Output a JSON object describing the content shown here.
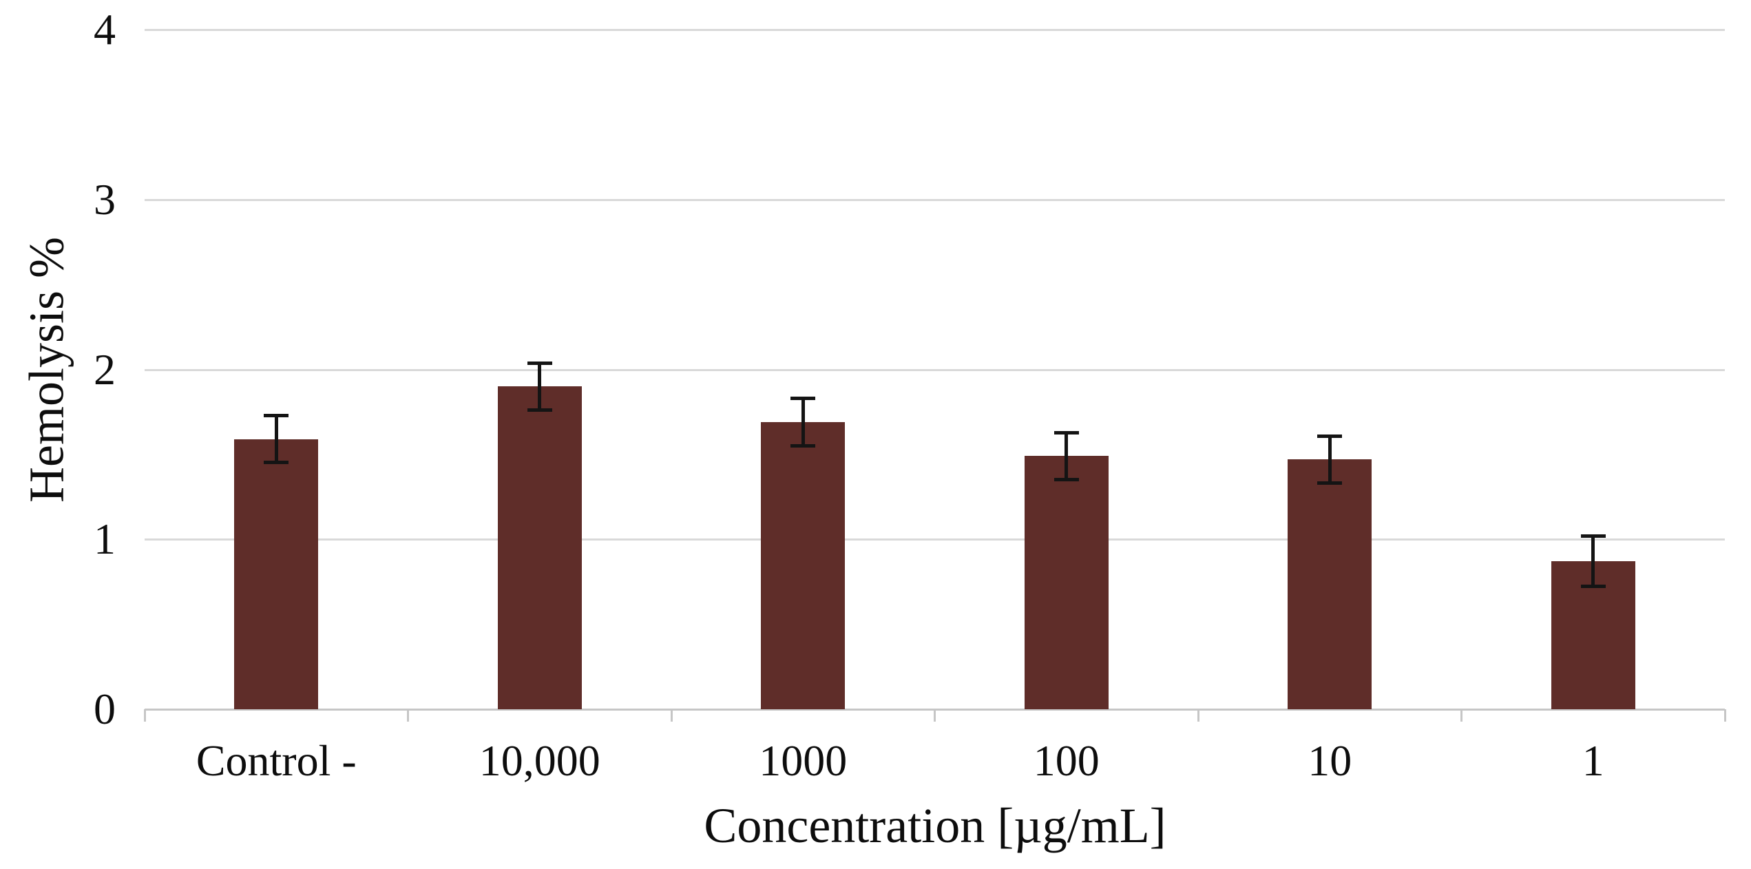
{
  "chart_data": {
    "type": "bar",
    "title": "",
    "xlabel": "Concentration [µg/mL]",
    "ylabel": "Hemolysis %",
    "categories": [
      "Control -",
      "10,000",
      "1000",
      "100",
      "10",
      "1"
    ],
    "values": [
      1.59,
      1.9,
      1.69,
      1.49,
      1.47,
      0.87
    ],
    "error_bars": [
      0.14,
      0.14,
      0.14,
      0.14,
      0.14,
      0.15
    ],
    "ylim": [
      0,
      4
    ],
    "yticks": [
      0,
      1,
      2,
      3,
      4
    ],
    "grid": "horizontal",
    "legend": "none",
    "colors": {
      "bar": "#5f2d29",
      "error_bar": "#141414",
      "gridline": "#d9d9d9",
      "axis_line": "#c6c6c6",
      "text": "#0d0d0d",
      "background": "#ffffff"
    }
  }
}
